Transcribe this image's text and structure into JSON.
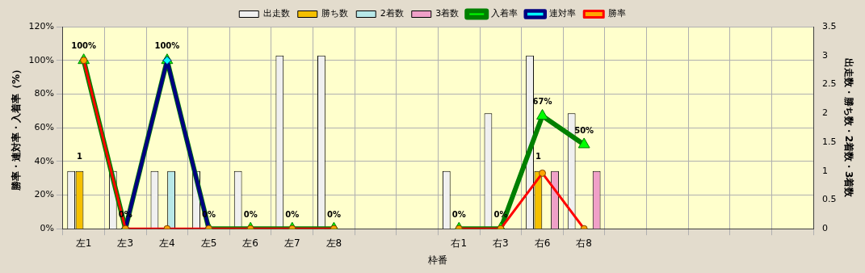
{
  "chart_data": {
    "type": "bar",
    "xlabel": "枠番",
    "ylabel": "勝率・連対率・入着率（%）",
    "y2label": "出走数・勝ち数・2着数・3着数",
    "categories": [
      "左1",
      "左3",
      "左4",
      "左5",
      "左6",
      "左7",
      "左8",
      null,
      null,
      "右1",
      "右3",
      "右6",
      "右8",
      null,
      null,
      null,
      null,
      null
    ],
    "series": [
      {
        "name": "出走数",
        "axis": "y2",
        "color": "#f0f0f0",
        "values": [
          1,
          1,
          1,
          1,
          1,
          3,
          3,
          null,
          null,
          1,
          2,
          3,
          2,
          null,
          null,
          null,
          null,
          null
        ]
      },
      {
        "name": "勝ち数",
        "axis": "y2",
        "color": "#f5c000",
        "values": [
          1,
          0,
          0,
          0,
          0,
          0,
          0,
          null,
          null,
          0,
          0,
          1,
          0,
          null,
          null,
          null,
          null,
          null
        ],
        "value_labels": [
          "1",
          null,
          null,
          null,
          null,
          null,
          null,
          null,
          null,
          null,
          null,
          "1",
          null,
          null,
          null,
          null,
          null,
          null
        ]
      },
      {
        "name": "2着数",
        "axis": "y2",
        "color": "#b8e8e8",
        "values": [
          0,
          0,
          1,
          0,
          0,
          0,
          0,
          null,
          null,
          0,
          0,
          0,
          0,
          null,
          null,
          null,
          null,
          null
        ]
      },
      {
        "name": "3着数",
        "axis": "y2",
        "color": "#f0a0c8",
        "values": [
          0,
          0,
          0,
          0,
          0,
          0,
          0,
          null,
          null,
          0,
          0,
          1,
          1,
          null,
          null,
          null,
          null,
          null
        ]
      },
      {
        "name": "入着率",
        "type": "line",
        "axis": "y",
        "color": "#008000",
        "marker": "triangle",
        "values": [
          100,
          0,
          100,
          0,
          0,
          0,
          0,
          null,
          null,
          0,
          0,
          67,
          50,
          null,
          null,
          null,
          null,
          null
        ],
        "value_labels": [
          "100%",
          "0%",
          "100%",
          "0%",
          "0%",
          "0%",
          "0%",
          null,
          null,
          "0%",
          "0%",
          "67%",
          "50%",
          null,
          null,
          null,
          null,
          null
        ]
      },
      {
        "name": "連対率",
        "type": "line",
        "axis": "y",
        "color": "#000080",
        "marker": "diamond",
        "values": [
          null,
          0,
          100,
          0,
          null,
          null,
          null,
          null,
          null,
          null,
          null,
          null,
          null,
          null,
          null,
          null,
          null,
          null
        ]
      },
      {
        "name": "勝率",
        "type": "line",
        "axis": "y",
        "color": "#ff0000",
        "marker": "circle",
        "values": [
          100,
          0,
          0,
          0,
          0,
          0,
          0,
          null,
          null,
          0,
          0,
          33,
          0,
          null,
          null,
          null,
          null,
          null
        ]
      }
    ],
    "ylim": [
      0,
      120
    ],
    "yticks": [
      {
        "value": 0,
        "label": "0%"
      },
      {
        "value": 20,
        "label": "20%"
      },
      {
        "value": 40,
        "label": "40%"
      },
      {
        "value": 60,
        "label": "60%"
      },
      {
        "value": 80,
        "label": "80%"
      },
      {
        "value": 100,
        "label": "100%"
      },
      {
        "value": 120,
        "label": "120%"
      }
    ],
    "y2lim": [
      0,
      3.5
    ],
    "y2ticks": [
      0,
      0.5,
      1,
      1.5,
      2,
      2.5,
      3,
      3.5
    ],
    "grid": true,
    "legend": "top"
  }
}
